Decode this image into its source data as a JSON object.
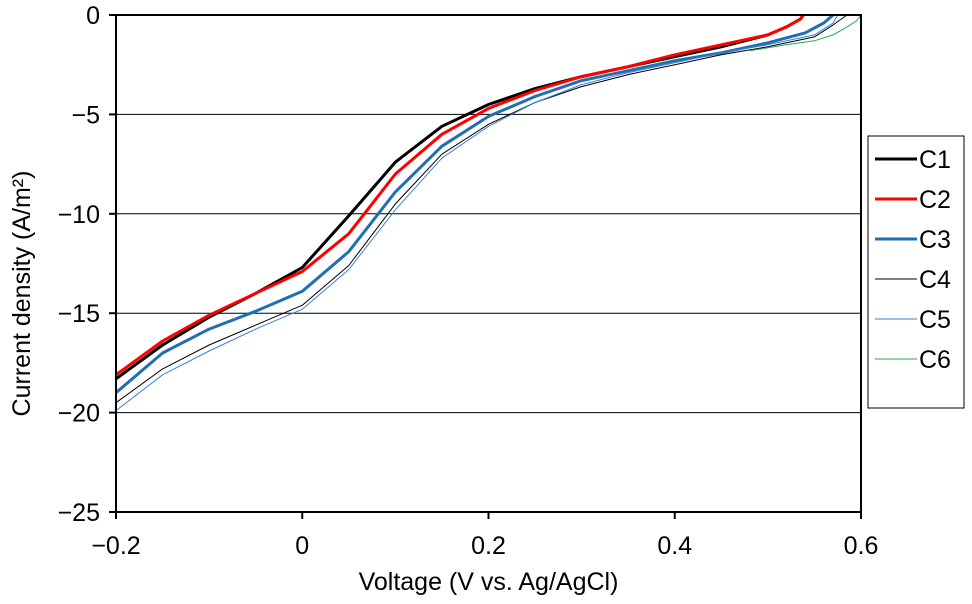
{
  "chart_data": {
    "type": "line",
    "title": "",
    "xlabel": "Voltage (V vs. Ag/AgCl)",
    "ylabel": "Current density (A/m²)",
    "xlim": [
      -0.2,
      0.6
    ],
    "ylim": [
      -25,
      0
    ],
    "xticks": [
      -0.2,
      0,
      0.2,
      0.4,
      0.6
    ],
    "yticks": [
      0,
      -5,
      -10,
      -15,
      -20,
      -25
    ],
    "xtick_labels": [
      "−0.2",
      "0",
      "0.2",
      "0.4",
      "0.6"
    ],
    "ytick_labels": [
      "0",
      "−5",
      "−10",
      "−15",
      "−20",
      "−25"
    ],
    "grid": "horizontal major gridlines",
    "legend_position": "right",
    "series": [
      {
        "name": "C1",
        "color": "#000000",
        "width": 3,
        "x": [
          -0.2,
          -0.15,
          -0.1,
          -0.05,
          0,
          0.05,
          0.1,
          0.15,
          0.2,
          0.25,
          0.3,
          0.35,
          0.4,
          0.45,
          0.5,
          0.52,
          0.535,
          0.538
        ],
        "y": [
          -18.3,
          -16.6,
          -15.2,
          -14.0,
          -12.7,
          -10.1,
          -7.4,
          -5.6,
          -4.5,
          -3.7,
          -3.1,
          -2.6,
          -2.1,
          -1.6,
          -1.0,
          -0.6,
          -0.2,
          0
        ]
      },
      {
        "name": "C2",
        "color": "#ff0000",
        "width": 3,
        "x": [
          -0.2,
          -0.15,
          -0.1,
          -0.05,
          0,
          0.05,
          0.1,
          0.15,
          0.2,
          0.25,
          0.3,
          0.35,
          0.4,
          0.45,
          0.5,
          0.52,
          0.535,
          0.538
        ],
        "y": [
          -18.1,
          -16.4,
          -15.1,
          -14.0,
          -12.9,
          -11.0,
          -8.0,
          -6.0,
          -4.7,
          -3.8,
          -3.1,
          -2.6,
          -2.0,
          -1.5,
          -1.0,
          -0.6,
          -0.2,
          0
        ]
      },
      {
        "name": "C3",
        "color": "#1f6fb2",
        "width": 3,
        "x": [
          -0.2,
          -0.15,
          -0.1,
          -0.05,
          0,
          0.05,
          0.1,
          0.15,
          0.2,
          0.25,
          0.3,
          0.35,
          0.4,
          0.45,
          0.5,
          0.54,
          0.56,
          0.57
        ],
        "y": [
          -19.0,
          -17.0,
          -15.8,
          -14.9,
          -13.9,
          -11.9,
          -8.9,
          -6.6,
          -5.1,
          -4.1,
          -3.3,
          -2.8,
          -2.3,
          -1.9,
          -1.4,
          -0.9,
          -0.4,
          0
        ]
      },
      {
        "name": "C4",
        "color": "#000000",
        "width": 1,
        "x": [
          -0.2,
          -0.15,
          -0.1,
          -0.05,
          0,
          0.05,
          0.1,
          0.15,
          0.2,
          0.25,
          0.3,
          0.35,
          0.4,
          0.45,
          0.5,
          0.55,
          0.57,
          0.585
        ],
        "y": [
          -19.5,
          -17.8,
          -16.6,
          -15.6,
          -14.6,
          -12.6,
          -9.5,
          -7.0,
          -5.5,
          -4.4,
          -3.6,
          -3.0,
          -2.5,
          -2.0,
          -1.6,
          -1.1,
          -0.5,
          0
        ]
      },
      {
        "name": "C5",
        "color": "#3a7fd5",
        "width": 1,
        "x": [
          -0.2,
          -0.15,
          -0.1,
          -0.05,
          0,
          0.05,
          0.1,
          0.15,
          0.2,
          0.25,
          0.3,
          0.35,
          0.4,
          0.45,
          0.5,
          0.55,
          0.57,
          0.575
        ],
        "y": [
          -19.9,
          -18.1,
          -16.9,
          -15.8,
          -14.8,
          -12.8,
          -9.8,
          -7.2,
          -5.6,
          -4.4,
          -3.5,
          -2.9,
          -2.4,
          -1.9,
          -1.5,
          -1.0,
          -0.4,
          0
        ]
      },
      {
        "name": "C6",
        "color": "#2aa84a",
        "width": 1,
        "x": [
          0.48,
          0.52,
          0.55,
          0.57,
          0.585,
          0.595,
          0.6
        ],
        "y": [
          -1.8,
          -1.5,
          -1.3,
          -1.0,
          -0.6,
          -0.3,
          0
        ]
      }
    ]
  }
}
